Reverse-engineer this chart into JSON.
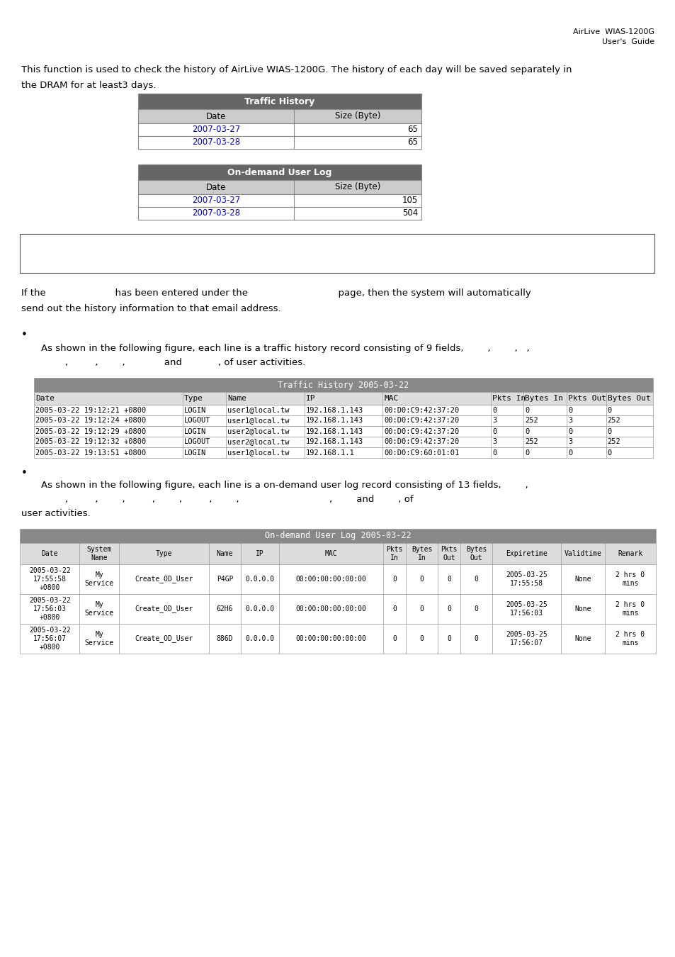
{
  "header_right": [
    "AirLive  WIAS-1200G",
    "User's  Guide"
  ],
  "intro_text_1": "This function is used to check the history of AirLive WIAS-1200G. The history of each day will be saved separately in",
  "intro_text_2": "the DRAM for at least3 days.",
  "table1_title": "Traffic History",
  "table1_header": [
    "Date",
    "Size (Byte)"
  ],
  "table1_rows": [
    [
      "2007-03-27",
      "65"
    ],
    [
      "2007-03-28",
      "65"
    ]
  ],
  "table2_title": "On-demand User Log",
  "table2_header": [
    "Date",
    "Size (Byte)"
  ],
  "table2_rows": [
    [
      "2007-03-27",
      "105"
    ],
    [
      "2007-03-28",
      "504"
    ]
  ],
  "para1_line1": "If the                       has been entered under the                              page, then the system will automatically",
  "para1_line2": "send out the history information to that email address.",
  "bullet1_line1": "As shown in the following figure, each line is a traffic history record consisting of 9 fields,        ,        ,   ,",
  "bullet1_line2": "        ,         ,        ,             and            , of user activities.",
  "table3_title": "Traffic History 2005-03-22",
  "table3_header": [
    "Date",
    "Type",
    "Name",
    "IP",
    "MAC",
    "Pkts In",
    "Bytes In",
    "Pkts Out",
    "Bytes Out"
  ],
  "table3_col_widths": [
    190,
    55,
    100,
    100,
    138,
    42,
    55,
    50,
    60
  ],
  "table3_rows": [
    [
      "2005-03-22 19:12:21 +0800",
      "LOGIN",
      "user1@local.tw",
      "192.168.1.143",
      "00:D0:C9:42:37:20",
      "0",
      "0",
      "0",
      "0"
    ],
    [
      "2005-03-22 19:12:24 +0800",
      "LOGOUT",
      "user1@local.tw",
      "192.168.1.143",
      "00:D0:C9:42:37:20",
      "3",
      "252",
      "3",
      "252"
    ],
    [
      "2005-03-22 19:12:29 +0800",
      "LOGIN",
      "user2@local.tw",
      "192.168.1.143",
      "00:D0:C9:42:37:20",
      "0",
      "0",
      "0",
      "0"
    ],
    [
      "2005-03-22 19:12:32 +0800",
      "LOGOUT",
      "user2@local.tw",
      "192.168.1.143",
      "00:D0:C9:42:37:20",
      "3",
      "252",
      "3",
      "252"
    ],
    [
      "2005-03-22 19:13:51 +0800",
      "LOGIN",
      "user1@local.tw",
      "192.168.1.1",
      "00:D0:C9:60:01:01",
      "0",
      "0",
      "0",
      "0"
    ]
  ],
  "bullet2_line1": "As shown in the following figure, each line is a on-demand user log record consisting of 13 fields,        ,",
  "bullet2_line2": "        ,         ,        ,         ,        ,         ,        ,                              ,        and        , of",
  "bullet2_line3": "user activities.",
  "table4_title": "On-demand User Log 2005-03-22",
  "table4_header": [
    "Date",
    "System\nName",
    "Type",
    "Name",
    "IP",
    "MAC",
    "Pkts\nIn",
    "Bytes\nIn",
    "Pkts\nOut",
    "Bytes\nOut",
    "Expiretime",
    "Validtime",
    "Remark"
  ],
  "table4_col_widths": [
    68,
    45,
    102,
    36,
    44,
    118,
    26,
    36,
    26,
    36,
    78,
    50,
    58
  ],
  "table4_rows": [
    [
      "2005-03-22\n17:55:58\n+0800",
      "My\nService",
      "Create_OD_User",
      "P4GP",
      "0.0.0.0",
      "00:00:00:00:00:00",
      "0",
      "0",
      "0",
      "0",
      "2005-03-25\n17:55:58",
      "None",
      "2 hrs 0\nmins"
    ],
    [
      "2005-03-22\n17:56:03\n+0800",
      "My\nService",
      "Create_OD_User",
      "62H6",
      "0.0.0.0",
      "00:00:00:00:00:00",
      "0",
      "0",
      "0",
      "0",
      "2005-03-25\n17:56:03",
      "None",
      "2 hrs 0\nmins"
    ],
    [
      "2005-03-22\n17:56:07\n+0800",
      "My\nService",
      "Create_OD_User",
      "886D",
      "0.0.0.0",
      "00:00:00:00:00:00",
      "0",
      "0",
      "0",
      "0",
      "2005-03-25\n17:56:07",
      "None",
      "2 hrs 0\nmins"
    ]
  ],
  "header_bg": "#666666",
  "subheader_bg": "#cccccc",
  "link_color": "#0000cc",
  "border_color": "#999999",
  "bg_color": "#ffffff"
}
